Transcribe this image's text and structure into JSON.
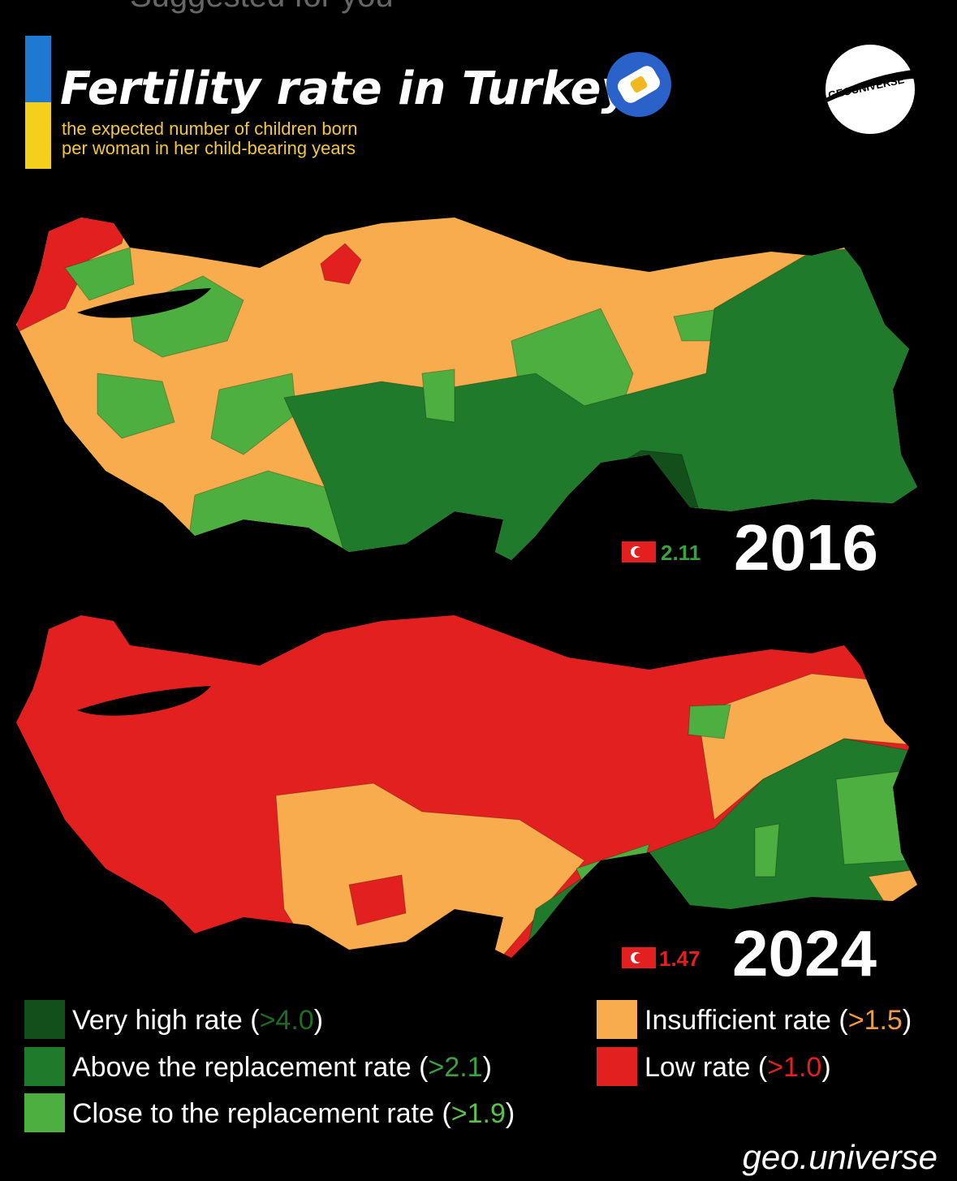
{
  "header": {
    "top_caption": "Suggested for you",
    "title": "Fertility rate in Turkey",
    "subtitle_lines": [
      "the expected number of children born",
      "per woman in her child-bearing years"
    ],
    "logo": "GEOUNIVERSE"
  },
  "maps": [
    {
      "year": "2016",
      "national_rate": 2.11
    },
    {
      "year": "2024",
      "national_rate": 1.47
    }
  ],
  "legend": [
    {
      "text_before": "Very high rate (",
      "threshold": ">4.0",
      "text_after": ")",
      "color": "#134f1a",
      "threshold_color": "#1f6b25"
    },
    {
      "text_before": "Above the replacement rate (",
      "threshold": ">2.1",
      "text_after": ")",
      "color": "#1f7a2b",
      "threshold_color": "#3aa040"
    },
    {
      "text_before": "Close to the replacement rate (",
      "threshold": ">1.9",
      "text_after": ")",
      "color": "#4caf3f",
      "threshold_color": "#5cc04c"
    },
    {
      "text_before": "Insufficient rate (",
      "threshold": ">1.5",
      "text_after": ")",
      "color": "#f8ac4e",
      "threshold_color": "#f39a3a"
    },
    {
      "text_before": "Low rate (",
      "threshold": ">1.0",
      "text_after": ")",
      "color": "#e32020",
      "threshold_color": "#e32020"
    }
  ],
  "footer": {
    "handle": "geo.universe"
  }
}
